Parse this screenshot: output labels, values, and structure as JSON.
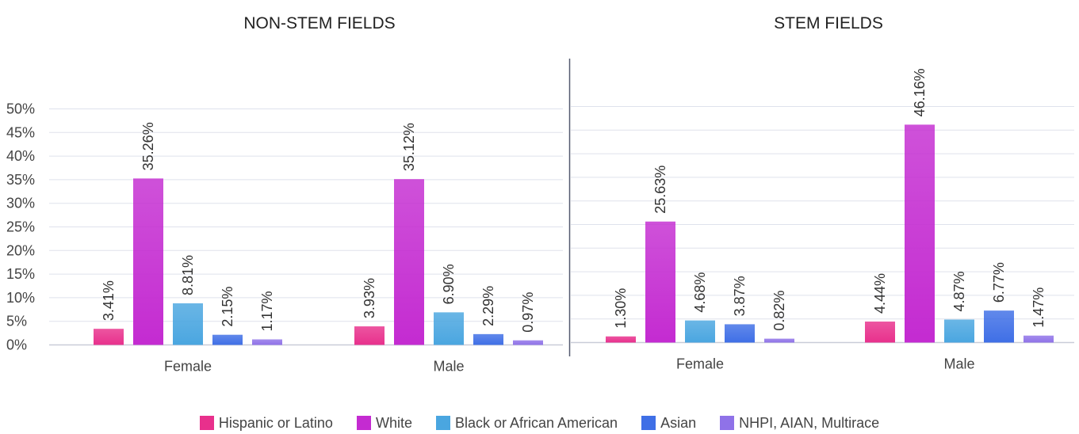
{
  "chart_data": [
    {
      "type": "bar",
      "title": "NON-STEM FIELDS",
      "categories": [
        "Female",
        "Male"
      ],
      "series": [
        {
          "name": "Hispanic or Latino",
          "values": [
            3.41,
            3.93
          ]
        },
        {
          "name": "White",
          "values": [
            35.26,
            35.12
          ]
        },
        {
          "name": "Black or African American",
          "values": [
            8.81,
            6.9
          ]
        },
        {
          "name": "Asian",
          "values": [
            2.15,
            2.29
          ]
        },
        {
          "name": "NHPI, AIAN, Multirace",
          "values": [
            1.17,
            0.97
          ]
        }
      ],
      "value_labels": [
        [
          "3.41%",
          "3.93%"
        ],
        [
          "35.26%",
          "35.12%"
        ],
        [
          "8.81%",
          "6.90%"
        ],
        [
          "2.15%",
          "2.29%"
        ],
        [
          "1.17%",
          "0.97%"
        ]
      ],
      "ylim": [
        0,
        50
      ],
      "yticks": [
        "0%",
        "5%",
        "10%",
        "15%",
        "20%",
        "25%",
        "30%",
        "35%",
        "40%",
        "45%",
        "50%"
      ],
      "grid": true
    },
    {
      "type": "bar",
      "title": "STEM FIELDS",
      "categories": [
        "Female",
        "Male"
      ],
      "series": [
        {
          "name": "Hispanic or Latino",
          "values": [
            1.3,
            4.44
          ]
        },
        {
          "name": "White",
          "values": [
            25.63,
            46.16
          ]
        },
        {
          "name": "Black or African American",
          "values": [
            4.68,
            4.87
          ]
        },
        {
          "name": "Asian",
          "values": [
            3.87,
            6.77
          ]
        },
        {
          "name": "NHPI, AIAN, Multirace",
          "values": [
            0.82,
            1.47
          ]
        }
      ],
      "value_labels": [
        [
          "1.30%",
          "4.44%"
        ],
        [
          "25.63%",
          "46.16%"
        ],
        [
          "4.68%",
          "4.87%"
        ],
        [
          "3.87%",
          "6.77%"
        ],
        [
          "0.82%",
          "1.47%"
        ]
      ],
      "ylim": [
        0,
        50
      ],
      "grid": true
    }
  ],
  "legend": {
    "placement": "bottom",
    "items": [
      {
        "label": "Hispanic or Latino",
        "color": "#e8308c"
      },
      {
        "label": "White",
        "color": "#c42bd1"
      },
      {
        "label": "Black or African American",
        "color": "#4aa6e0"
      },
      {
        "label": "Asian",
        "color": "#3f6fe6"
      },
      {
        "label": "NHPI, AIAN, Multirace",
        "color": "#8f72e8"
      }
    ]
  }
}
